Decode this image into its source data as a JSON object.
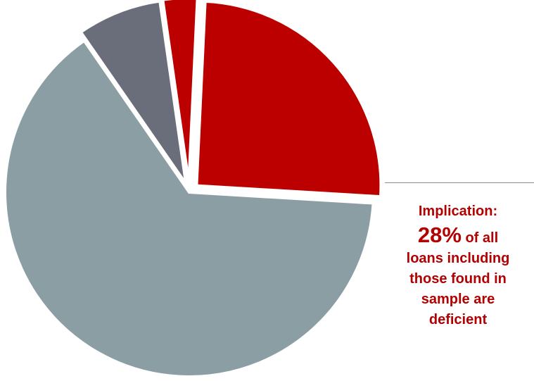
{
  "chart_data": {
    "type": "pie",
    "slices": [
      {
        "value": 64.4,
        "color": "#8b9ea4"
      },
      {
        "value": 7.4,
        "color": "#696e7a"
      },
      {
        "value": 3.0,
        "color": "#bc0000"
      },
      {
        "value": 25.2,
        "color": "#bc0000"
      }
    ],
    "annotation": {
      "prefix": "Implication:",
      "highlight": "28%",
      "highlight_suffix": "of all",
      "lines": [
        "loans including",
        "those found in",
        "sample are",
        "deficient"
      ]
    }
  }
}
